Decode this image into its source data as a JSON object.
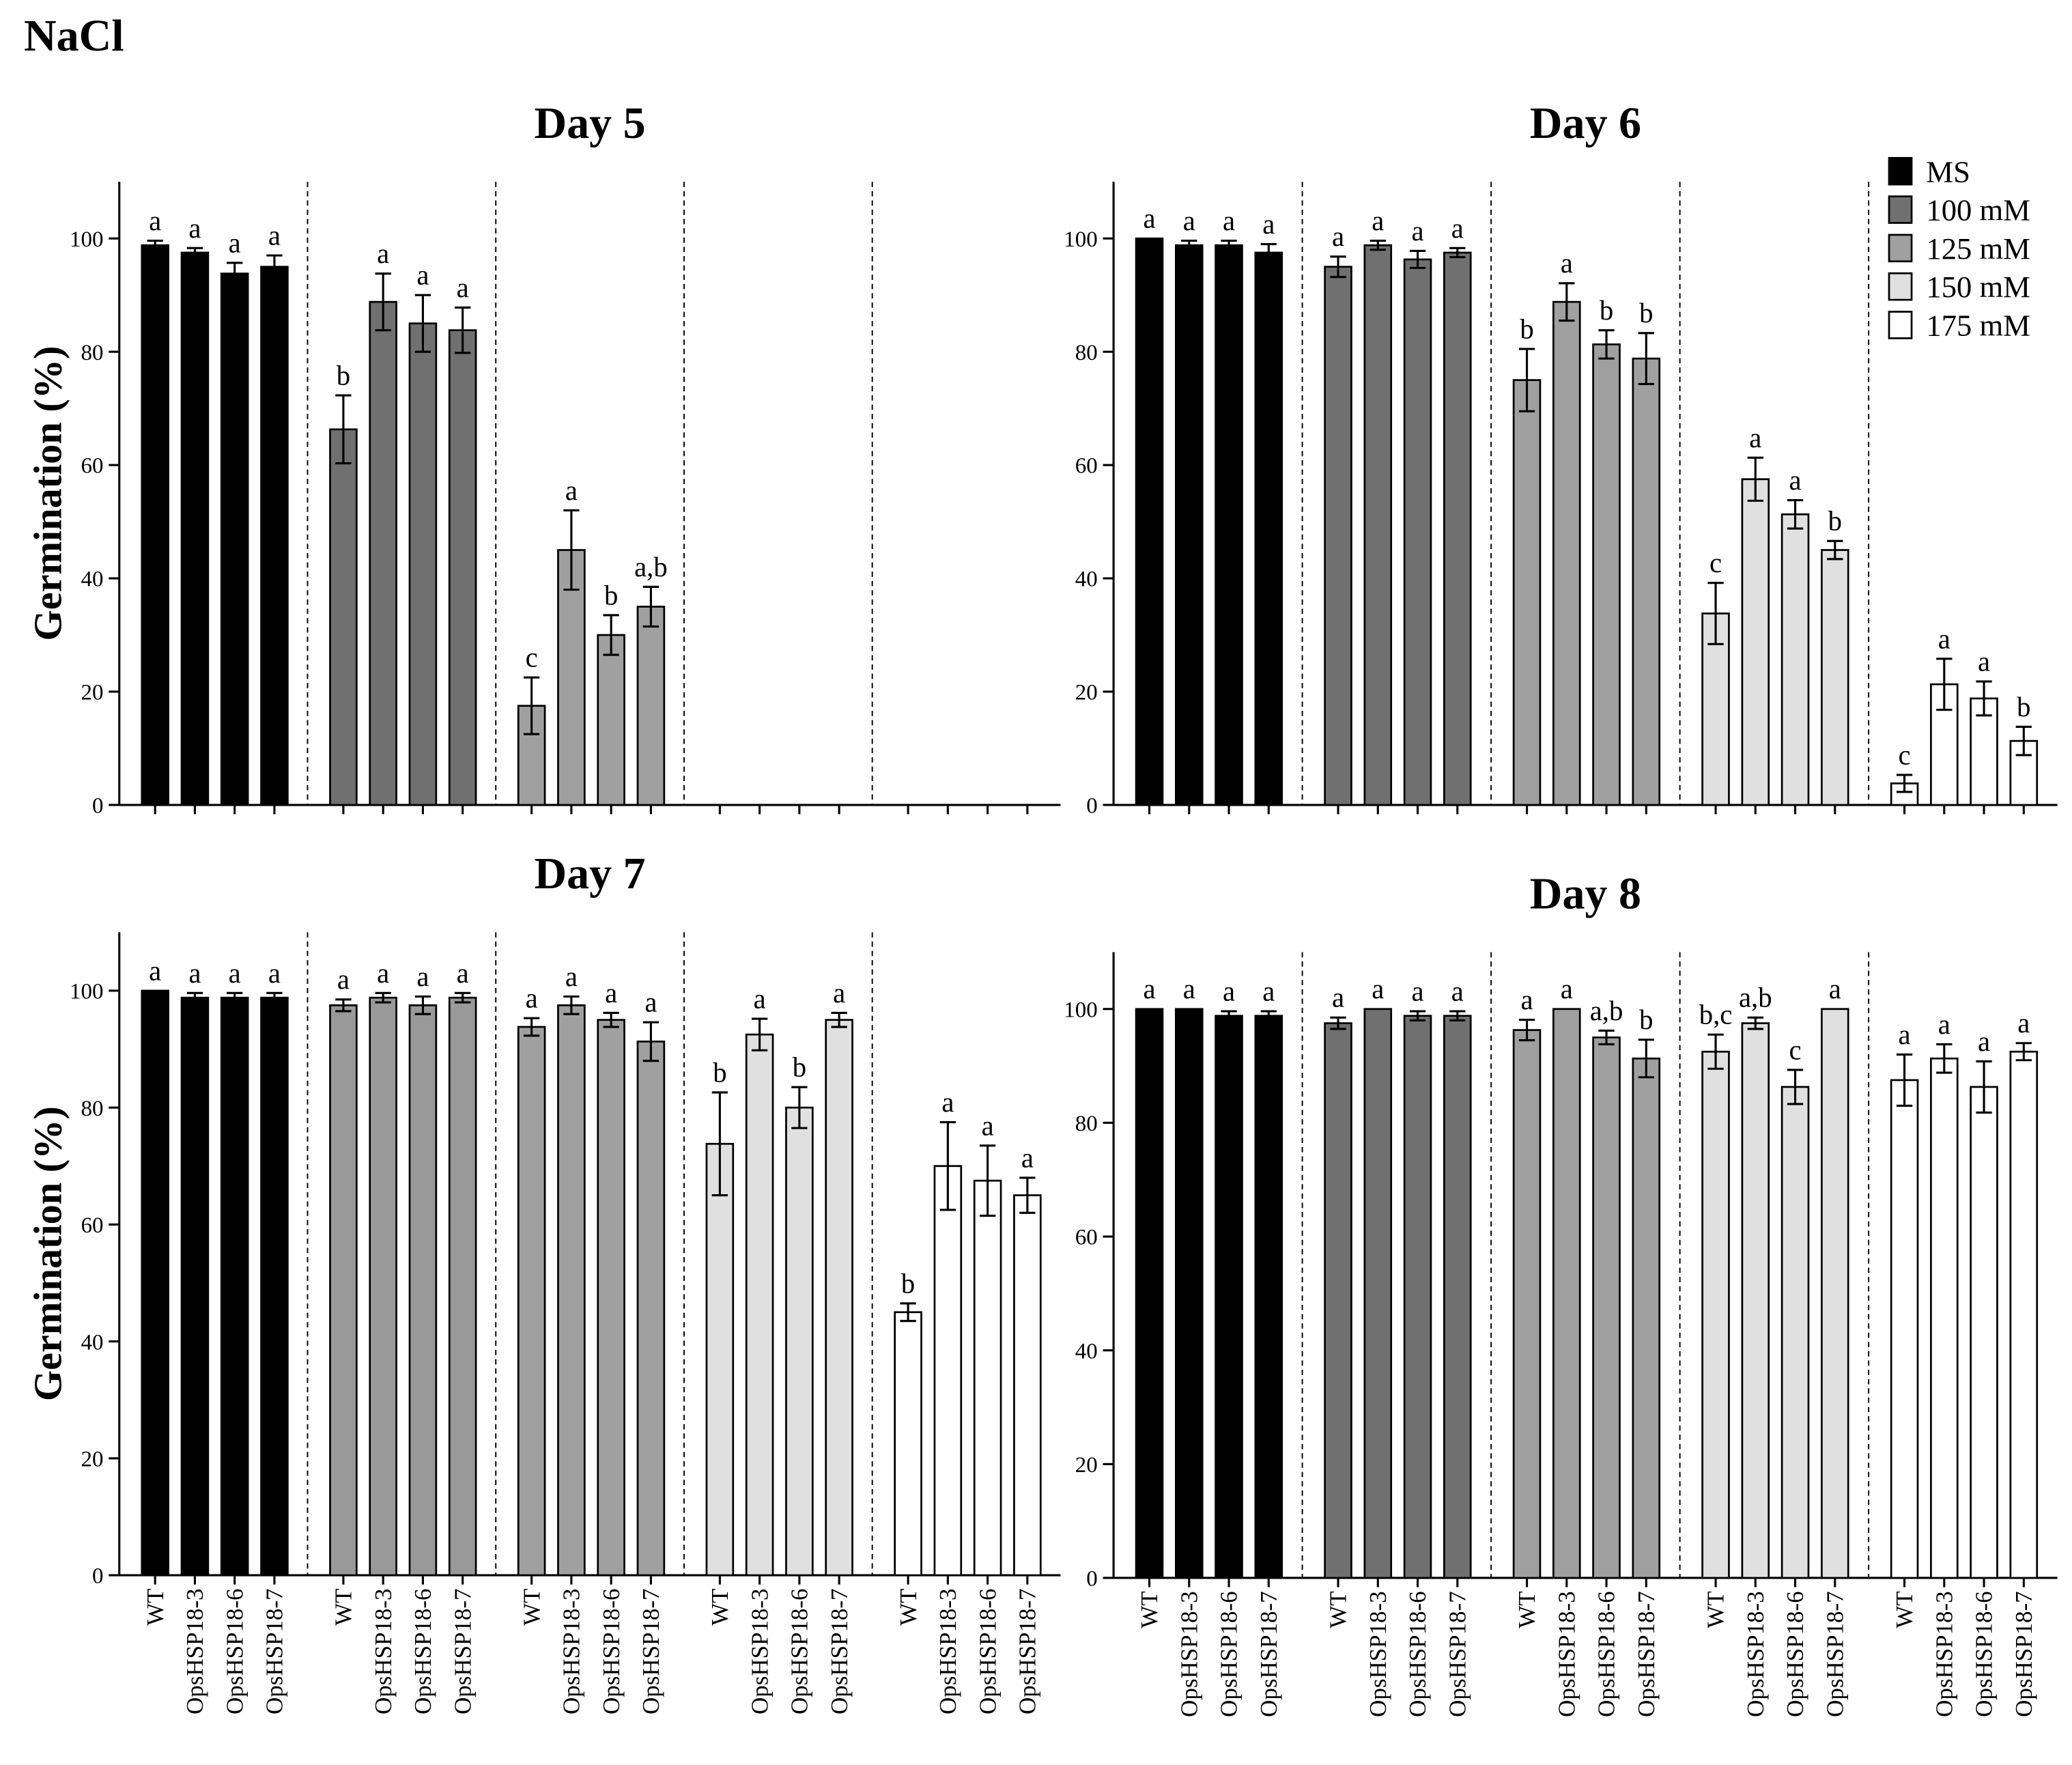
{
  "figure_title": "NaCl",
  "chart_data": [
    {
      "type": "bar",
      "title": "Day 5",
      "ylabel": "Germination (%)",
      "ylim": [
        0,
        110
      ],
      "yticks": [
        0,
        20,
        40,
        60,
        80,
        100
      ],
      "series": [
        {
          "color": "#000000",
          "values": [
            98.8,
            97.5,
            93.8,
            95
          ],
          "errors": [
            0.8,
            0.8,
            1.9,
            2
          ],
          "letters": [
            "a",
            "a",
            "a",
            "a"
          ]
        },
        {
          "color": "#707070",
          "values": [
            66.3,
            88.8,
            85,
            83.8
          ],
          "errors": [
            6,
            5,
            5,
            4
          ],
          "letters": [
            "b",
            "a",
            "a",
            "a"
          ]
        },
        {
          "color": "#a0a0a0",
          "values": [
            17.5,
            45,
            30,
            35
          ],
          "errors": [
            5,
            7,
            3.5,
            3.5
          ],
          "letters": [
            "c",
            "a",
            "b",
            "a,b"
          ]
        },
        {
          "color": "#e0e0e0",
          "values": [
            0,
            0,
            0,
            0
          ],
          "errors": [
            null,
            null,
            null,
            null
          ],
          "letters": [
            null,
            null,
            null,
            null
          ]
        },
        {
          "color": "#ffffff",
          "values": [
            0,
            0,
            0,
            0
          ],
          "errors": [
            null,
            null,
            null,
            null
          ],
          "letters": [
            null,
            null,
            null,
            null
          ]
        }
      ]
    },
    {
      "type": "bar",
      "title": "Day 6",
      "ylim": [
        0,
        110
      ],
      "yticks": [
        0,
        20,
        40,
        60,
        80,
        100
      ],
      "legend": "upper right",
      "series": [
        {
          "name": "MS",
          "color": "#000000",
          "values": [
            100,
            98.8,
            98.8,
            97.5
          ],
          "errors": [
            null,
            0.8,
            0.8,
            1.5
          ],
          "letters": [
            "a",
            "a",
            "a",
            "a"
          ]
        },
        {
          "name": "100 mM",
          "color": "#707070",
          "values": [
            95,
            98.8,
            96.3,
            97.5
          ],
          "errors": [
            1.8,
            0.8,
            1.5,
            0.8
          ],
          "letters": [
            "a",
            "a",
            "a",
            "a"
          ]
        },
        {
          "name": "125 mM",
          "color": "#a0a0a0",
          "values": [
            75,
            88.8,
            81.3,
            78.8
          ],
          "errors": [
            5.5,
            3.3,
            2.5,
            4.5
          ],
          "letters": [
            "b",
            "a",
            "b",
            "b"
          ]
        },
        {
          "name": "150 mM",
          "color": "#e0e0e0",
          "values": [
            33.8,
            57.5,
            51.3,
            45
          ],
          "errors": [
            5.4,
            3.8,
            2.5,
            1.6
          ],
          "letters": [
            "c",
            "a",
            "a",
            "b"
          ]
        },
        {
          "name": "175 mM",
          "color": "#ffffff",
          "values": [
            3.8,
            21.3,
            18.8,
            11.3
          ],
          "errors": [
            1.5,
            4.5,
            3,
            2.5
          ],
          "letters": [
            "c",
            "a",
            "a",
            "b"
          ]
        }
      ]
    },
    {
      "type": "bar",
      "title": "Day 7",
      "ylabel": "Germination (%)",
      "ylim": [
        0,
        110
      ],
      "yticks": [
        0,
        20,
        40,
        60,
        80,
        100
      ],
      "categories": [
        "WT",
        "OpsHSP18-3",
        "OpsHSP18-6",
        "OpsHSP18-7"
      ],
      "series": [
        {
          "color": "#000000",
          "values": [
            100,
            98.8,
            98.8,
            98.8
          ],
          "errors": [
            null,
            0.8,
            0.8,
            0.8
          ],
          "letters": [
            "a",
            "a",
            "a",
            "a"
          ]
        },
        {
          "color": "#999999",
          "values": [
            97.5,
            98.8,
            97.5,
            98.8
          ],
          "errors": [
            1,
            0.8,
            1.5,
            0.8
          ],
          "letters": [
            "a",
            "a",
            "a",
            "a"
          ]
        },
        {
          "color": "#a0a0a0",
          "values": [
            93.8,
            97.5,
            95,
            91.3
          ],
          "errors": [
            1.5,
            1.5,
            1.2,
            3.3
          ],
          "letters": [
            "a",
            "a",
            "a",
            "a"
          ]
        },
        {
          "color": "#e0e0e0",
          "values": [
            73.8,
            92.5,
            80,
            95
          ],
          "errors": [
            8.8,
            2.7,
            3.5,
            1.2
          ],
          "letters": [
            "b",
            "a",
            "b",
            "a"
          ]
        },
        {
          "color": "#ffffff",
          "values": [
            45,
            70,
            67.5,
            65
          ],
          "errors": [
            1.5,
            7.5,
            6,
            3
          ],
          "letters": [
            "b",
            "a",
            "a",
            "a"
          ]
        }
      ]
    },
    {
      "type": "bar",
      "title": "Day 8",
      "ylim": [
        0,
        110
      ],
      "yticks": [
        0,
        20,
        40,
        60,
        80,
        100
      ],
      "categories": [
        "WT",
        "OpsHSP18-3",
        "OpsHSP18-6",
        "OpsHSP18-7"
      ],
      "series": [
        {
          "color": "#000000",
          "values": [
            100,
            100,
            98.8,
            98.8
          ],
          "errors": [
            null,
            null,
            0.8,
            0.8
          ],
          "letters": [
            "a",
            "a",
            "a",
            "a"
          ]
        },
        {
          "color": "#707070",
          "values": [
            97.5,
            100,
            98.8,
            98.8
          ],
          "errors": [
            1,
            null,
            0.8,
            0.8
          ],
          "letters": [
            "a",
            "a",
            "a",
            "a"
          ]
        },
        {
          "color": "#a0a0a0",
          "values": [
            96.3,
            100,
            95,
            91.3
          ],
          "errors": [
            1.8,
            null,
            1.2,
            3.3
          ],
          "letters": [
            "a",
            "a",
            "a,b",
            "b"
          ]
        },
        {
          "color": "#e0e0e0",
          "values": [
            92.5,
            97.5,
            86.3,
            100
          ],
          "errors": [
            3,
            1,
            3,
            null
          ],
          "letters": [
            "b,c",
            "a,b",
            "c",
            "a"
          ]
        },
        {
          "color": "#ffffff",
          "values": [
            87.5,
            91.3,
            86.3,
            92.5
          ],
          "errors": [
            4.5,
            2.5,
            4.5,
            1.5
          ],
          "letters": [
            "a",
            "a",
            "a",
            "a"
          ]
        }
      ]
    }
  ]
}
